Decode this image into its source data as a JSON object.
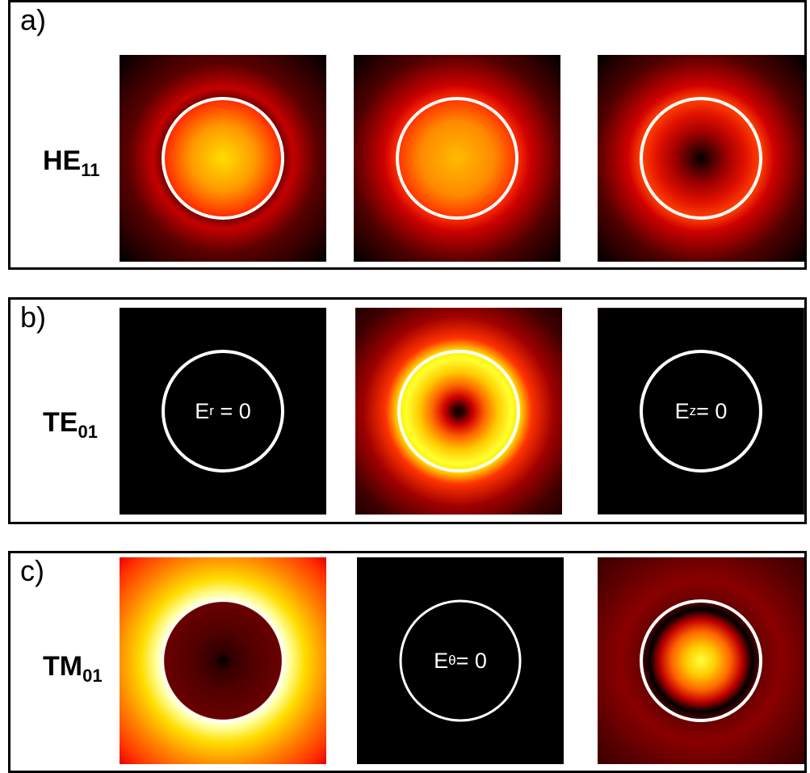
{
  "column_headers": {
    "er": {
      "base": "E",
      "sub": "r"
    },
    "etheta": {
      "base": "E",
      "sub": "θ"
    },
    "ez": {
      "base": "E",
      "sub": "z"
    }
  },
  "rows": [
    {
      "tag": "a)",
      "mode": {
        "base": "HE",
        "sub": "11"
      }
    },
    {
      "tag": "b)",
      "mode": {
        "base": "TE",
        "sub": "01"
      }
    },
    {
      "tag": "c)",
      "mode": {
        "base": "TM",
        "sub": "01"
      }
    }
  ],
  "zero_labels": {
    "te_er": {
      "base": "E",
      "sub": "r",
      "rest": " = 0"
    },
    "te_ez": {
      "base": "E",
      "sub": "z",
      "rest": "= 0"
    },
    "tm_etheta": {
      "base": "E",
      "sub": "θ",
      "rest": "= 0"
    }
  },
  "colors": {
    "colormap": [
      "#000000",
      "#5a0000",
      "#c40000",
      "#ff3300",
      "#ff9900",
      "#ffee00",
      "#ffffaa"
    ],
    "core_outline": "#ffffff",
    "row_border": "#000000"
  }
}
